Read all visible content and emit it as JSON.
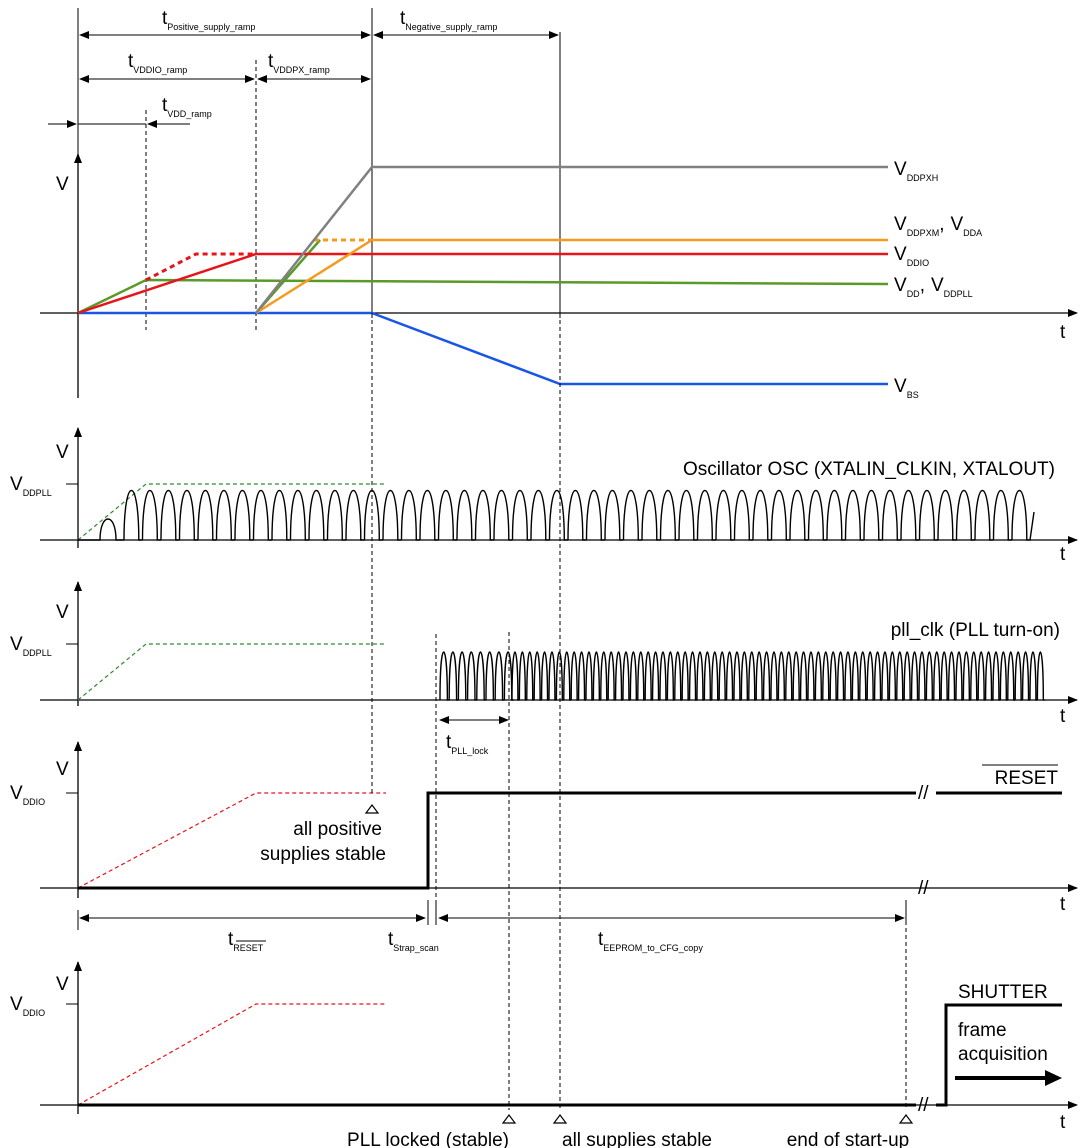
{
  "timing": {
    "positive_supply_ramp": {
      "main": "t",
      "sub": "Positive_supply_ramp"
    },
    "negative_supply_ramp": {
      "main": "t",
      "sub": "Negative_supply_ramp"
    },
    "vddio_ramp": {
      "main": "t",
      "sub": "VDDIO_ramp"
    },
    "vddpx_ramp": {
      "main": "t",
      "sub": "VDDPX_ramp"
    },
    "vdd_ramp": {
      "main": "t",
      "sub": "VDD_ramp"
    },
    "pll_lock": {
      "main": "t",
      "sub": "PLL_lock"
    },
    "reset": {
      "main": "t",
      "sub": "RESET"
    },
    "strap_scan": {
      "main": "t",
      "sub": "Strap_scan"
    },
    "eeprom_copy": {
      "main": "t",
      "sub": "EEPROM_to_CFG_copy"
    }
  },
  "axes": {
    "v": "V",
    "t": "t"
  },
  "supplies": {
    "vddpxh": {
      "main": "V",
      "sub": "DDPXH"
    },
    "vddpxm": {
      "main": "V",
      "sub": "DDPXM",
      "sep": ","
    },
    "vdda": {
      "main": "V",
      "sub": "DDA"
    },
    "vddio": {
      "main": "V",
      "sub": "DDIO"
    },
    "vdd": {
      "main": "V",
      "sub": "DD",
      "sep": ","
    },
    "vddpll": {
      "main": "V",
      "sub": "DDPLL"
    },
    "vbs": {
      "main": "V",
      "sub": "BS"
    }
  },
  "levels": {
    "vddpll": {
      "main": "V",
      "sub": "DDPLL"
    },
    "vddio": {
      "main": "V",
      "sub": "DDIO"
    }
  },
  "signals": {
    "oscillator": "Oscillator OSC (XTALIN_CLKIN, XTALOUT)",
    "pll_clk": "pll_clk (PLL turn-on)",
    "reset": "RESET",
    "shutter": "SHUTTER",
    "frame_acq_1": "frame",
    "frame_acq_2": "acquisition"
  },
  "events": {
    "positive_stable_1": "all positive",
    "positive_stable_2": "supplies stable",
    "pll_locked": "PLL locked (stable)",
    "all_stable": "all supplies stable",
    "end_startup": "end of start-up"
  },
  "colors": {
    "vddpxh": "#808080",
    "vddpxm_vdda": "#f59a1e",
    "vddio": "#e8141b",
    "vdd_vddpll": "#5a9a28",
    "vbs": "#1a56e6",
    "vddpll_dashed": "#2e8b2e",
    "vddio_dashed": "#e8141b",
    "line": "#000000"
  }
}
